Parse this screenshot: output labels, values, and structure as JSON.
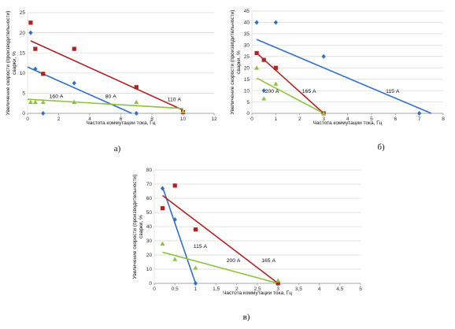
{
  "colors": {
    "blue": "#2f6fcc",
    "red": "#b22222",
    "green": "#8cc43c",
    "grid": "#d9d9d9",
    "axis": "#8a8a8a"
  },
  "chart_data": [
    {
      "type": "scatter",
      "panel_label": "а)",
      "xlabel": "Частота коммутации тока, Гц",
      "ylabel_lines": [
        "Увеличение скорости (производительности)",
        "сварки, %"
      ],
      "xlim": [
        0,
        12
      ],
      "ylim": [
        0,
        25
      ],
      "xticks": [
        0,
        2,
        4,
        6,
        8,
        10,
        12
      ],
      "xtick_labels": [
        "0",
        "2",
        "4",
        "6",
        "8",
        "10",
        "12"
      ],
      "yticks": [
        0,
        5,
        10,
        15,
        20,
        25
      ],
      "ytick_labels": [
        "0",
        "5",
        "10",
        "15",
        "20",
        "25"
      ],
      "series": [
        {
          "color": "blue",
          "marker": "diamond",
          "x": [
            0.2,
            0.5,
            1,
            3,
            7
          ],
          "y": [
            20,
            11,
            0,
            7.5,
            0
          ],
          "trend": [
            [
              0,
              11.5
            ],
            [
              6.7,
              0
            ]
          ]
        },
        {
          "color": "red",
          "marker": "square",
          "x": [
            0.2,
            0.5,
            1,
            3,
            7,
            10
          ],
          "y": [
            22.5,
            16,
            9.8,
            16,
            6.5,
            0.3
          ],
          "trend": [
            [
              0.2,
              18
            ],
            [
              10,
              0.8
            ]
          ]
        },
        {
          "color": "green",
          "marker": "triangle",
          "x": [
            0.2,
            0.5,
            1,
            3,
            7,
            10
          ],
          "y": [
            2.8,
            2.8,
            2.8,
            2.8,
            2.8,
            0.5
          ],
          "trend": [
            [
              0,
              3.5
            ],
            [
              10,
              1.2
            ]
          ]
        }
      ],
      "annotations": [
        {
          "text": "160 А",
          "x": 1.4,
          "y": 3.8
        },
        {
          "text": "80 А",
          "x": 5.0,
          "y": 3.8
        },
        {
          "text": "110 А",
          "x": 9.0,
          "y": 3.0
        }
      ]
    },
    {
      "type": "scatter",
      "panel_label": "б)",
      "xlabel": "Частота коммутации тока, Гц",
      "ylabel_lines": [
        "Увеличение скорости (производительности)",
        "сварки, %"
      ],
      "xlim": [
        0,
        8
      ],
      "ylim": [
        0,
        45
      ],
      "xticks": [
        0,
        1,
        2,
        3,
        4,
        5,
        6,
        7,
        8
      ],
      "xtick_labels": [
        "0",
        "1",
        "2",
        "3",
        "4",
        "5",
        "6",
        "7",
        "8"
      ],
      "yticks": [
        0,
        5,
        10,
        15,
        20,
        25,
        30,
        35,
        40,
        45
      ],
      "ytick_labels": [
        "0",
        "5",
        "10",
        "15",
        "20",
        "25",
        "30",
        "35",
        "40",
        "45"
      ],
      "series": [
        {
          "color": "blue",
          "marker": "diamond",
          "x": [
            0.2,
            1,
            3,
            7,
            0.5
          ],
          "y": [
            40,
            40,
            25,
            0,
            10
          ],
          "trend": [
            [
              0.2,
              32.5
            ],
            [
              7.5,
              0
            ]
          ]
        },
        {
          "color": "red",
          "marker": "square",
          "x": [
            0.2,
            0.5,
            1,
            3
          ],
          "y": [
            26.5,
            23.5,
            20,
            0
          ],
          "trend": [
            [
              0.2,
              26.5
            ],
            [
              3,
              0
            ]
          ]
        },
        {
          "color": "green",
          "marker": "triangle",
          "x": [
            0.2,
            0.5,
            1,
            3
          ],
          "y": [
            20,
            6.5,
            13,
            0
          ],
          "trend": [
            [
              0.2,
              15.5
            ],
            [
              3,
              0
            ]
          ]
        }
      ],
      "annotations": [
        {
          "text": "200 А",
          "x": 0.55,
          "y": 9.0
        },
        {
          "text": "165 А",
          "x": 2.1,
          "y": 9.0
        },
        {
          "text": "115 А",
          "x": 5.6,
          "y": 9.0
        }
      ]
    },
    {
      "type": "scatter",
      "panel_label": "в)",
      "xlabel": "Частота коммутации тока, Гц",
      "ylabel_lines": [
        "Увеличение скорости (производительности)",
        "сварки, %"
      ],
      "xlim": [
        0,
        5
      ],
      "ylim": [
        0,
        80
      ],
      "xticks": [
        0,
        0.5,
        1,
        1.5,
        2,
        2.5,
        3,
        3.5,
        4,
        4.5,
        5
      ],
      "xtick_labels": [
        "0",
        "0,5",
        "1",
        "1,5",
        "2",
        "2,5",
        "3",
        "3,5",
        "4",
        "4,5",
        "5"
      ],
      "yticks": [
        0,
        10,
        20,
        30,
        40,
        50,
        60,
        70,
        80
      ],
      "ytick_labels": [
        "0",
        "10",
        "20",
        "30",
        "40",
        "50",
        "60",
        "70",
        "80"
      ],
      "series": [
        {
          "color": "blue",
          "marker": "diamond",
          "x": [
            0.2,
            0.5,
            1
          ],
          "y": [
            67,
            45,
            0
          ],
          "trend": [
            [
              0.2,
              68
            ],
            [
              1,
              0
            ]
          ]
        },
        {
          "color": "red",
          "marker": "square",
          "x": [
            0.2,
            0.5,
            1,
            3
          ],
          "y": [
            53,
            69,
            38,
            0
          ],
          "trend": [
            [
              0.2,
              62
            ],
            [
              3,
              0
            ]
          ]
        },
        {
          "color": "green",
          "marker": "triangle",
          "x": [
            0.2,
            0.5,
            1,
            3
          ],
          "y": [
            28,
            17,
            11,
            2
          ],
          "trend": [
            [
              0.2,
              22
            ],
            [
              3,
              0
            ]
          ]
        }
      ],
      "annotations": [
        {
          "text": "115 А",
          "x": 0.95,
          "y": 25
        },
        {
          "text": "200 А",
          "x": 1.75,
          "y": 15
        },
        {
          "text": "165 А",
          "x": 2.6,
          "y": 15
        }
      ]
    }
  ]
}
